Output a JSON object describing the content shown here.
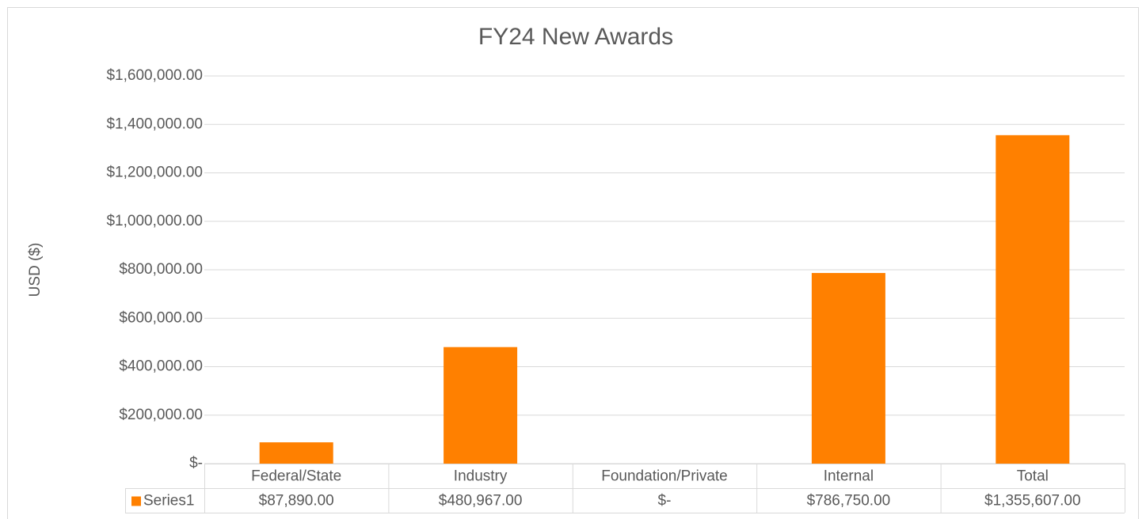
{
  "chart_data": {
    "type": "bar",
    "title": "FY24 New Awards",
    "y_label": "USD ($)",
    "categories": [
      "Federal/State",
      "Industry",
      "Foundation/Private",
      "Internal",
      "Total"
    ],
    "series": [
      {
        "name": "Series1",
        "color": "#ff8000",
        "values": [
          87890,
          480967,
          0,
          786750,
          1355607
        ],
        "value_labels": [
          "$87,890.00",
          "$480,967.00",
          "$-",
          "$786,750.00",
          "$1,355,607.00"
        ]
      }
    ],
    "ylim": [
      0,
      1600000
    ],
    "yticks": [
      {
        "value": 0,
        "label": "$-"
      },
      {
        "value": 200000,
        "label": "$200,000.00"
      },
      {
        "value": 400000,
        "label": "$400,000.00"
      },
      {
        "value": 600000,
        "label": "$600,000.00"
      },
      {
        "value": 800000,
        "label": "$800,000.00"
      },
      {
        "value": 1000000,
        "label": "$1,000,000.00"
      },
      {
        "value": 1200000,
        "label": "$1,200,000.00"
      },
      {
        "value": 1400000,
        "label": "$1,400,000.00"
      },
      {
        "value": 1600000,
        "label": "$1,600,000.00"
      }
    ],
    "grid": true
  }
}
